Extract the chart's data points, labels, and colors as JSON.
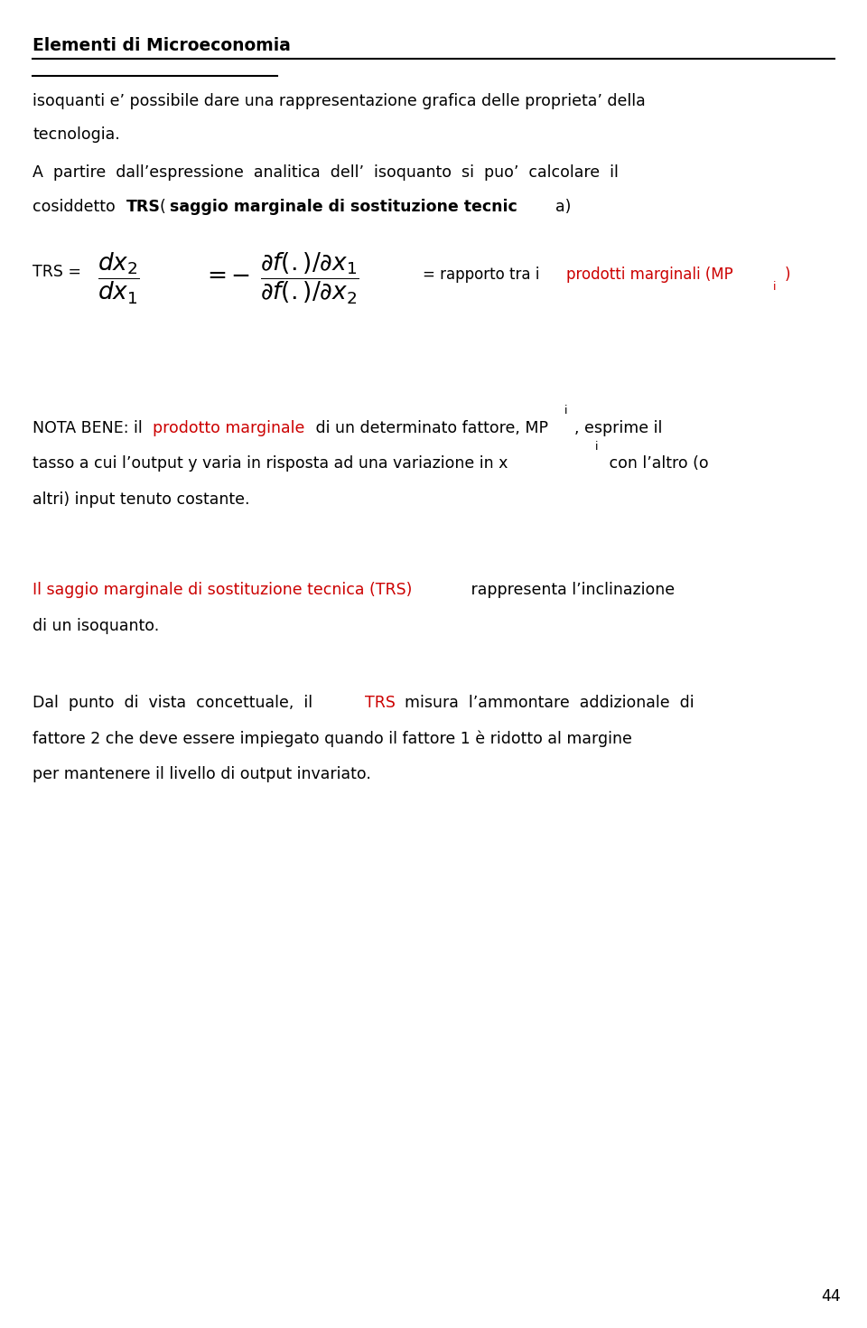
{
  "title": "Elementi di Microeconomia",
  "bg_color": "#ffffff",
  "text_color": "#000000",
  "red_color": "#cc0000",
  "page_number": "44",
  "para1": "isoquanti e’ possibile dare una rappresentazione grafica delle proprieta’ della",
  "para1b": "tecnologia.",
  "para2a": "A  partire  dall’espressione  analitica  dell’  isoquanto  si  puo’  calcolare  il",
  "nota_pre": "NOTA BENE: il ",
  "nota_red": "prodotto marginale",
  "red_sentence_red": "Il saggio marginale di sostituzione tecnica (TRS)",
  "red_sentence_black": " rappresenta l’inclinazione",
  "red_sentence2": "di un isoquanto.",
  "dal_pre": "Dal  punto  di  vista  concettuale,  il ",
  "dal_trs": "TRS",
  "dal_post": "  misura  l’ammontare  addizionale  di",
  "dal2": "fattore 2 che deve essere impiegato quando il fattore 1 è ridotto al margine",
  "dal3": "per mantenere il livello di output invariato."
}
